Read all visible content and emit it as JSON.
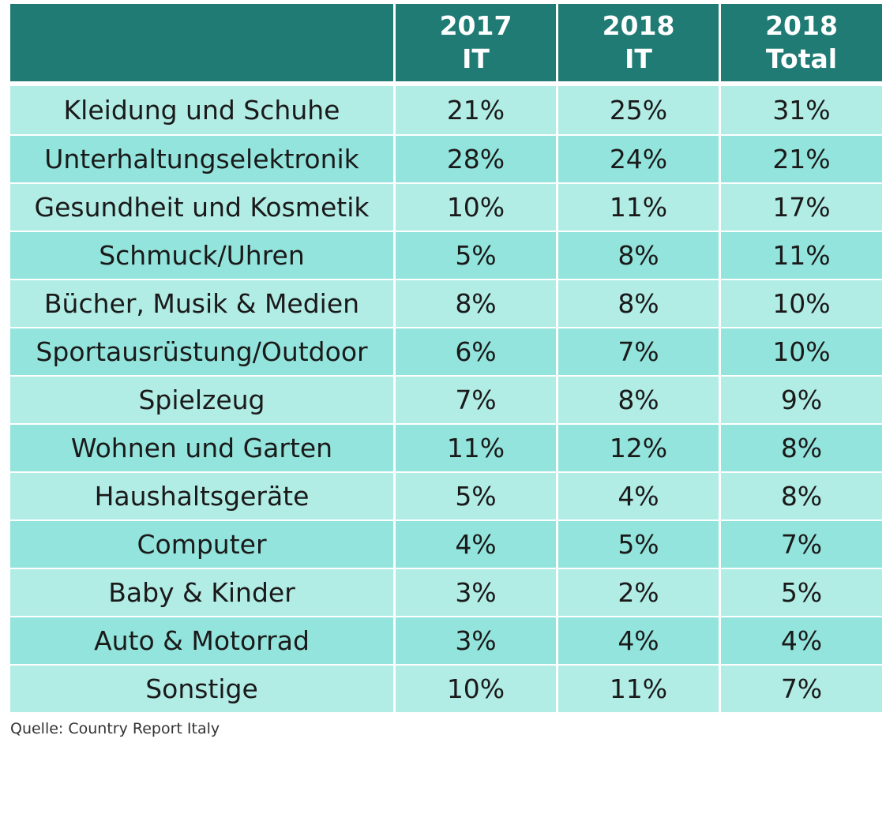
{
  "colors": {
    "header_bg": "#1f7b73",
    "row_light": "#b1ece5",
    "row_dark": "#93e4dc",
    "header_text": "#ffffff",
    "cell_text": "#1a1a1a"
  },
  "chart_data": {
    "type": "table",
    "columns": [
      {
        "line1": "",
        "line2": ""
      },
      {
        "line1": "2017",
        "line2": "IT"
      },
      {
        "line1": "2018",
        "line2": "IT"
      },
      {
        "line1": "2018",
        "line2": "Total"
      }
    ],
    "rows": [
      {
        "category": "Kleidung und Schuhe",
        "values": [
          "21%",
          "25%",
          "31%"
        ]
      },
      {
        "category": "Unterhaltungselektronik",
        "values": [
          "28%",
          "24%",
          "21%"
        ]
      },
      {
        "category": "Gesundheit und Kosmetik",
        "values": [
          "10%",
          "11%",
          "17%"
        ]
      },
      {
        "category": "Schmuck/Uhren",
        "values": [
          "5%",
          "8%",
          "11%"
        ]
      },
      {
        "category": "Bücher, Musik & Medien",
        "values": [
          "8%",
          "8%",
          "10%"
        ]
      },
      {
        "category": "Sportausrüstung/Outdoor",
        "values": [
          "6%",
          "7%",
          "10%"
        ]
      },
      {
        "category": "Spielzeug",
        "values": [
          "7%",
          "8%",
          "9%"
        ]
      },
      {
        "category": "Wohnen und Garten",
        "values": [
          "11%",
          "12%",
          "8%"
        ]
      },
      {
        "category": "Haushaltsgeräte",
        "values": [
          "5%",
          "4%",
          "8%"
        ]
      },
      {
        "category": "Computer",
        "values": [
          "4%",
          "5%",
          "7%"
        ]
      },
      {
        "category": "Baby & Kinder",
        "values": [
          "3%",
          "2%",
          "5%"
        ]
      },
      {
        "category": "Auto & Motorrad",
        "values": [
          "3%",
          "4%",
          "4%"
        ]
      },
      {
        "category": "Sonstige",
        "values": [
          "10%",
          "11%",
          "7%"
        ]
      }
    ]
  },
  "source": "Quelle: Country Report Italy"
}
